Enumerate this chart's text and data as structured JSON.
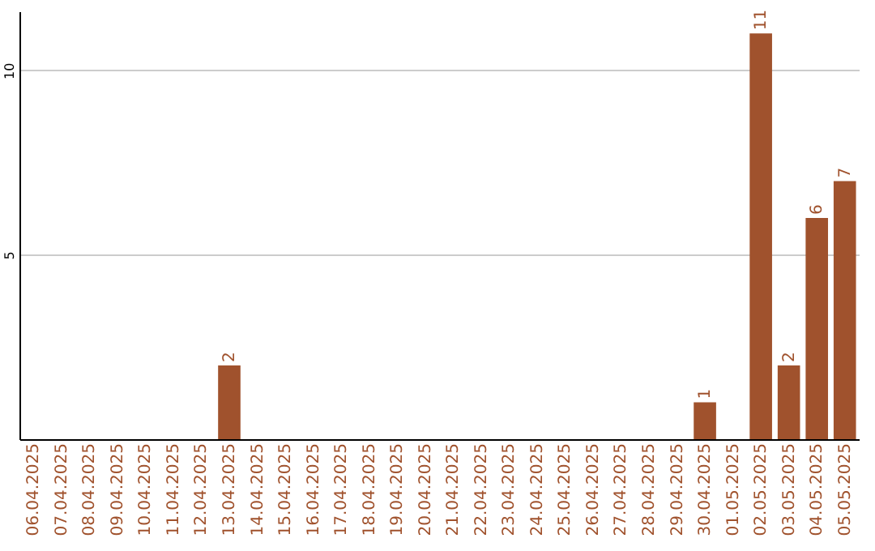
{
  "chart_data": {
    "type": "bar",
    "categories": [
      "06.04.2025",
      "07.04.2025",
      "08.04.2025",
      "09.04.2025",
      "10.04.2025",
      "11.04.2025",
      "12.04.2025",
      "13.04.2025",
      "14.04.2025",
      "15.04.2025",
      "16.04.2025",
      "17.04.2025",
      "18.04.2025",
      "19.04.2025",
      "20.04.2025",
      "21.04.2025",
      "22.04.2025",
      "23.04.2025",
      "24.04.2025",
      "25.04.2025",
      "26.04.2025",
      "27.04.2025",
      "28.04.2025",
      "29.04.2025",
      "30.04.2025",
      "01.05.2025",
      "02.05.2025",
      "03.05.2025",
      "04.05.2025",
      "05.05.2025"
    ],
    "values": [
      0,
      0,
      0,
      0,
      0,
      0,
      0,
      2,
      0,
      0,
      0,
      0,
      0,
      0,
      0,
      0,
      0,
      0,
      0,
      0,
      0,
      0,
      0,
      0,
      1,
      0,
      11,
      2,
      6,
      7
    ],
    "value_labels": [
      null,
      null,
      null,
      null,
      null,
      null,
      null,
      "2",
      null,
      null,
      null,
      null,
      null,
      null,
      null,
      null,
      null,
      null,
      null,
      null,
      null,
      null,
      null,
      null,
      "1",
      null,
      "11",
      "2",
      "6",
      "7"
    ],
    "color": "#a0522d",
    "ylim": [
      0,
      11.6
    ],
    "yticks": [
      5,
      10
    ],
    "grid": "y"
  }
}
